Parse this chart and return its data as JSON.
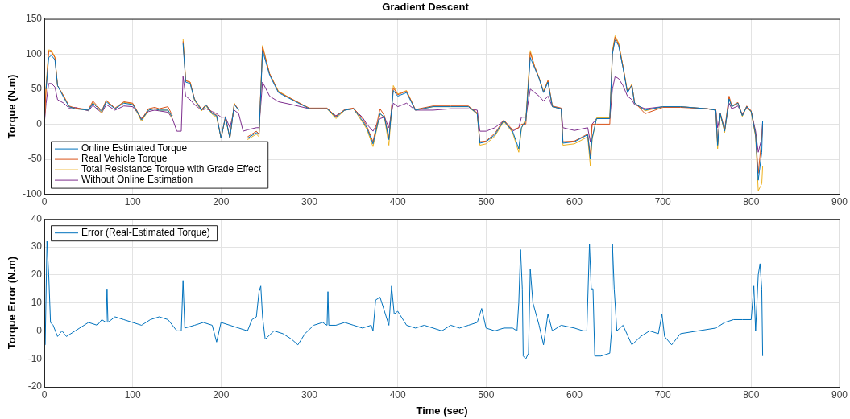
{
  "chart_data": [
    {
      "type": "line",
      "title": "Gradient Descent",
      "ylabel": "Torque (N.m)",
      "xlim": [
        0,
        900
      ],
      "xticks": [
        0,
        100,
        200,
        300,
        400,
        500,
        600,
        700,
        800,
        900
      ],
      "ylim": [
        -100,
        150
      ],
      "yticks": [
        -100,
        -50,
        0,
        50,
        100,
        150
      ],
      "grid": true,
      "legend": "bottom left",
      "marker": "none",
      "line_style": "solid",
      "x": [
        0,
        2,
        5,
        8,
        12,
        15,
        22,
        28,
        35,
        50,
        55,
        65,
        70,
        80,
        90,
        100,
        105,
        110,
        118,
        125,
        130,
        140,
        145,
        150,
        155,
        157,
        160,
        165,
        170,
        178,
        183,
        190,
        195,
        200,
        205,
        210,
        215,
        220,
        225,
        230,
        240,
        243,
        247,
        255,
        265,
        280,
        300,
        320,
        330,
        340,
        350,
        360,
        365,
        372,
        380,
        385,
        390,
        395,
        400,
        410,
        420,
        440,
        460,
        480,
        490,
        493,
        500,
        510,
        520,
        530,
        537,
        540,
        545,
        550,
        555,
        560,
        565,
        570,
        575,
        585,
        587,
        600,
        615,
        618,
        620,
        625,
        640,
        643,
        646,
        650,
        655,
        660,
        665,
        668,
        680,
        700,
        720,
        750,
        760,
        762,
        765,
        770,
        775,
        778,
        785,
        790,
        795,
        800,
        805,
        808,
        812,
        813
      ],
      "series": [
        {
          "name": "Online Estimated Torque",
          "color": "#0072bd",
          "values": [
            null,
            50,
            95,
            98,
            92,
            55,
            38,
            25,
            22,
            20,
            30,
            18,
            32,
            22,
            30,
            28,
            18,
            6,
            20,
            22,
            20,
            20,
            10,
            null,
            null,
            115,
            60,
            58,
            35,
            20,
            27,
            15,
            12,
            -20,
            10,
            -20,
            28,
            20,
            null,
            -20,
            -12,
            -15,
            105,
            70,
            45,
            35,
            22,
            22,
            10,
            20,
            22,
            5,
            -5,
            -28,
            15,
            10,
            -22,
            48,
            40,
            45,
            20,
            25,
            25,
            25,
            15,
            -27,
            -25,
            -15,
            5,
            -10,
            -35,
            -5,
            5,
            95,
            80,
            65,
            45,
            60,
            25,
            22,
            -27,
            -25,
            -15,
            -50,
            -20,
            8,
            8,
            100,
            120,
            112,
            80,
            45,
            55,
            30,
            20,
            25,
            25,
            22,
            20,
            -30,
            15,
            -10,
            36,
            25,
            30,
            12,
            25,
            18,
            -15,
            -80,
            -40,
            5
          ]
        },
        {
          "name": "Real Vehicle Torque",
          "color": "#d95319",
          "values": [
            0,
            50,
            104,
            103,
            95,
            55,
            40,
            26,
            23,
            21,
            33,
            19,
            34,
            23,
            32,
            30,
            19,
            7,
            22,
            24,
            22,
            25,
            12,
            null,
            null,
            118,
            62,
            60,
            36,
            21,
            28,
            16,
            13,
            -20,
            11,
            -20,
            29,
            21,
            null,
            -18,
            -10,
            -14,
            110,
            72,
            46,
            36,
            23,
            23,
            11,
            21,
            23,
            8,
            -3,
            -25,
            22,
            12,
            -20,
            52,
            42,
            47,
            21,
            26,
            26,
            26,
            16,
            -25,
            -24,
            -13,
            6,
            -8,
            -5,
            0,
            0,
            102,
            82,
            66,
            46,
            62,
            26,
            23,
            -25,
            -24,
            -14,
            -45,
            0,
            0,
            0,
            102,
            124,
            114,
            82,
            46,
            56,
            31,
            15,
            24,
            24,
            22,
            21,
            -28,
            16,
            -8,
            40,
            26,
            31,
            13,
            26,
            19,
            -14,
            -70,
            -20,
            0
          ]
        },
        {
          "name": "Total Resistance Torque with Grade Effect",
          "color": "#edb120",
          "values": [
            0,
            55,
            106,
            105,
            96,
            55,
            40,
            25,
            22,
            20,
            31,
            16,
            34,
            22,
            31,
            29,
            17,
            4,
            20,
            22,
            20,
            20,
            8,
            null,
            null,
            122,
            62,
            60,
            34,
            19,
            26,
            14,
            10,
            -20,
            9,
            -20,
            30,
            19,
            null,
            -22,
            -14,
            -18,
            112,
            72,
            47,
            36,
            22,
            22,
            8,
            20,
            22,
            3,
            -7,
            -32,
            15,
            9,
            -30,
            55,
            43,
            48,
            20,
            25,
            25,
            25,
            14,
            -30,
            -28,
            -17,
            4,
            -12,
            -40,
            -6,
            8,
            105,
            82,
            66,
            47,
            62,
            25,
            22,
            -30,
            -28,
            -18,
            -60,
            -22,
            9,
            9,
            105,
            126,
            116,
            82,
            46,
            57,
            30,
            19,
            25,
            25,
            22,
            20,
            -35,
            14,
            -12,
            38,
            25,
            30,
            11,
            25,
            17,
            -18,
            -95,
            -85,
            -60
          ]
        },
        {
          "name": "Without Online Estimation",
          "color": "#7e2f8e",
          "values": [
            0,
            30,
            58,
            58,
            53,
            35,
            30,
            23,
            24,
            19,
            27,
            16,
            28,
            20,
            26,
            25,
            17,
            8,
            18,
            20,
            19,
            17,
            8,
            -10,
            -10,
            68,
            40,
            35,
            28,
            20,
            22,
            18,
            15,
            10,
            10,
            -5,
            20,
            15,
            -10,
            -8,
            -5,
            -5,
            60,
            40,
            32,
            28,
            22,
            22,
            12,
            20,
            22,
            10,
            0,
            -10,
            8,
            10,
            -5,
            30,
            25,
            30,
            20,
            20,
            22,
            22,
            20,
            -10,
            -10,
            -5,
            5,
            -10,
            -5,
            10,
            10,
            50,
            45,
            40,
            33,
            40,
            25,
            22,
            -5,
            -9,
            -5,
            -25,
            0,
            8,
            8,
            50,
            68,
            65,
            55,
            40,
            35,
            28,
            22,
            25,
            25,
            22,
            20,
            -5,
            14,
            -8,
            30,
            22,
            26,
            14,
            24,
            18,
            -10,
            -40,
            -20,
            5
          ]
        }
      ]
    },
    {
      "type": "line",
      "xlabel": "Time (sec)",
      "ylabel": "Torque Error (N.m)",
      "xlim": [
        0,
        900
      ],
      "xticks": [
        0,
        100,
        200,
        300,
        400,
        500,
        600,
        700,
        800,
        900
      ],
      "ylim": [
        -20,
        40
      ],
      "yticks": [
        -20,
        -10,
        0,
        10,
        20,
        30,
        40
      ],
      "grid": true,
      "legend": "top left",
      "marker": "none",
      "line_style": "solid",
      "x": [
        0,
        1,
        3,
        5,
        7,
        10,
        15,
        20,
        25,
        30,
        40,
        50,
        60,
        65,
        70,
        71,
        72,
        80,
        90,
        100,
        110,
        120,
        130,
        140,
        150,
        155,
        157,
        159,
        170,
        180,
        190,
        195,
        200,
        210,
        220,
        230,
        235,
        240,
        243,
        245,
        247,
        250,
        260,
        270,
        280,
        287,
        295,
        305,
        315,
        320,
        321,
        322,
        330,
        340,
        350,
        360,
        370,
        372,
        375,
        380,
        385,
        390,
        393,
        396,
        400,
        410,
        420,
        430,
        440,
        450,
        460,
        470,
        480,
        490,
        495,
        500,
        510,
        520,
        530,
        535,
        537,
        539,
        541,
        542,
        545,
        548,
        550,
        553,
        560,
        565,
        570,
        575,
        585,
        600,
        610,
        614,
        617,
        619,
        621,
        623,
        630,
        640,
        642,
        643,
        645,
        648,
        655,
        665,
        675,
        685,
        695,
        699,
        702,
        710,
        720,
        740,
        760,
        770,
        780,
        790,
        800,
        803,
        805,
        808,
        810,
        812,
        813
      ],
      "series": [
        {
          "name": "Error (Real-Estimated Torque)",
          "color": "#0072bd",
          "values": [
            -5,
            -5,
            32,
            20,
            3,
            2,
            -2,
            0,
            -2,
            -1,
            1,
            3,
            2,
            4,
            3,
            15,
            3,
            5,
            4,
            3,
            2,
            4,
            5,
            4,
            0,
            0,
            18,
            1,
            2,
            3,
            2,
            -4,
            3,
            2,
            1,
            0,
            4,
            5,
            14,
            16,
            5,
            -3,
            0,
            -1,
            -3,
            -5,
            -1,
            2,
            3,
            2,
            14,
            2,
            2,
            3,
            2,
            1,
            2,
            0,
            11,
            12,
            7,
            2,
            16,
            6,
            7,
            2,
            1,
            2,
            1,
            0,
            2,
            1,
            2,
            3,
            8,
            1,
            0,
            1,
            1,
            0,
            10,
            29,
            15,
            -9,
            -10,
            -8,
            22,
            10,
            2,
            -5,
            6,
            0,
            2,
            1,
            0,
            0,
            31,
            15,
            15,
            -9,
            -9,
            -8,
            0,
            31,
            15,
            0,
            2,
            -5,
            -2,
            0,
            -1,
            6,
            -2,
            -5,
            -1,
            0,
            1,
            3,
            4,
            4,
            4,
            16,
            0,
            20,
            24,
            15,
            -9
          ]
        }
      ]
    }
  ]
}
